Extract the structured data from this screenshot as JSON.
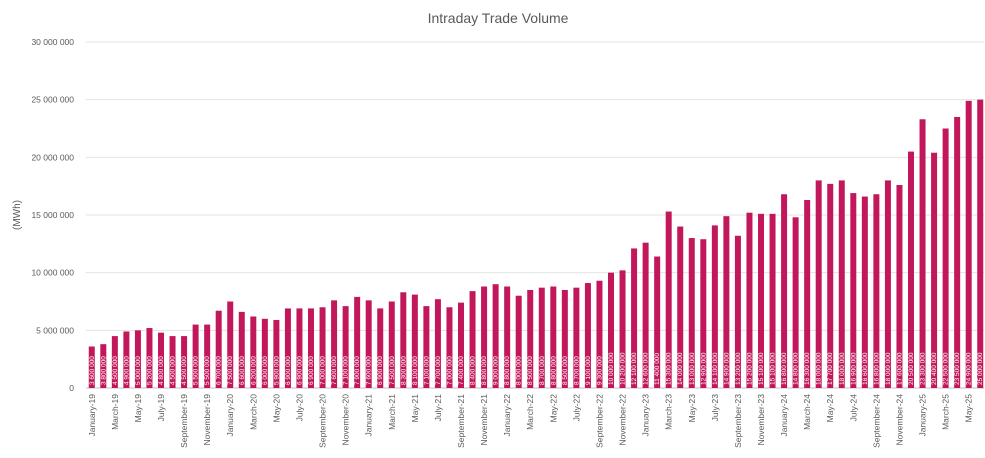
{
  "chart_data": {
    "type": "bar",
    "title": "Intraday Trade Volume",
    "xlabel": "",
    "ylabel": "(MWh)",
    "ylim": [
      0,
      30000000
    ],
    "yticks": [
      0,
      5000000,
      10000000,
      15000000,
      20000000,
      25000000,
      30000000
    ],
    "yticklabels": [
      "0",
      "5 000 000",
      "10 000 000",
      "15 000 000",
      "20 000 000",
      "25 000 000",
      "30 000 000"
    ],
    "grid": true,
    "legend": "none",
    "color": "#c2185b",
    "categories": [
      "January-19",
      "February-19",
      "March-19",
      "April-19",
      "May-19",
      "June-19",
      "July-19",
      "August-19",
      "September-19",
      "October-19",
      "November-19",
      "December-19",
      "January-20",
      "February-20",
      "March-20",
      "April-20",
      "May-20",
      "June-20",
      "July-20",
      "August-20",
      "September-20",
      "October-20",
      "November-20",
      "December-20",
      "January-21",
      "February-21",
      "March-21",
      "April-21",
      "May-21",
      "June-21",
      "July-21",
      "August-21",
      "September-21",
      "October-21",
      "November-21",
      "December-21",
      "January-22",
      "February-22",
      "March-22",
      "April-22",
      "May-22",
      "June-22",
      "July-22",
      "August-22",
      "September-22",
      "October-22",
      "November-22",
      "December-22",
      "January-23",
      "February-23",
      "March-23",
      "April-23",
      "May-23",
      "June-23",
      "July-23",
      "August-23",
      "September-23",
      "October-23",
      "November-23",
      "December-23",
      "January-24",
      "February-24",
      "March-24",
      "April-24",
      "May-24",
      "June-24",
      "July-24",
      "August-24",
      "September-24",
      "October-24",
      "November-24",
      "December-24",
      "January-25",
      "February-25",
      "March-25",
      "April-25",
      "May-25",
      "June-25"
    ],
    "tick_labels": [
      "January-19",
      "March-19",
      "May-19",
      "July-19",
      "September-19",
      "November-19",
      "January-20",
      "March-20",
      "May-20",
      "July-20",
      "September-20",
      "November-20",
      "January-21",
      "March-21",
      "May-21",
      "July-21",
      "September-21",
      "November-21",
      "January-22",
      "March-22",
      "May-22",
      "July-22",
      "September-22",
      "November-22",
      "January-23",
      "March-23",
      "May-23",
      "July-23",
      "September-23",
      "November-23",
      "January-24",
      "March-24",
      "May-24",
      "July-24",
      "September-24",
      "November-24",
      "January-25",
      "March-25",
      "May-25"
    ],
    "values": [
      3600000,
      3800000,
      4500000,
      4900000,
      5000000,
      5200000,
      4800000,
      4500000,
      4500000,
      5500000,
      5500000,
      6700000,
      7500000,
      6600000,
      6200000,
      6000000,
      5900000,
      6900000,
      6900000,
      6900000,
      7000000,
      7600000,
      7100000,
      7900000,
      7600000,
      6900000,
      7500000,
      8300000,
      8100000,
      7100000,
      7700000,
      7000000,
      7400000,
      8400000,
      8800000,
      9000000,
      8800000,
      8000000,
      8500000,
      8700000,
      8800000,
      8500000,
      8700000,
      9100000,
      9300000,
      10000000,
      10200000,
      12100000,
      12600000,
      11400000,
      15300000,
      14000000,
      13000000,
      12900000,
      14100000,
      14900000,
      13200000,
      15200000,
      15100000,
      15100000,
      16800000,
      14800000,
      16300000,
      18000000,
      17700000,
      18000000,
      16900000,
      16600000,
      16800000,
      18000000,
      17600000,
      20500000,
      23300000,
      20400000,
      22500000,
      23500000,
      24900000,
      25000000
    ]
  }
}
